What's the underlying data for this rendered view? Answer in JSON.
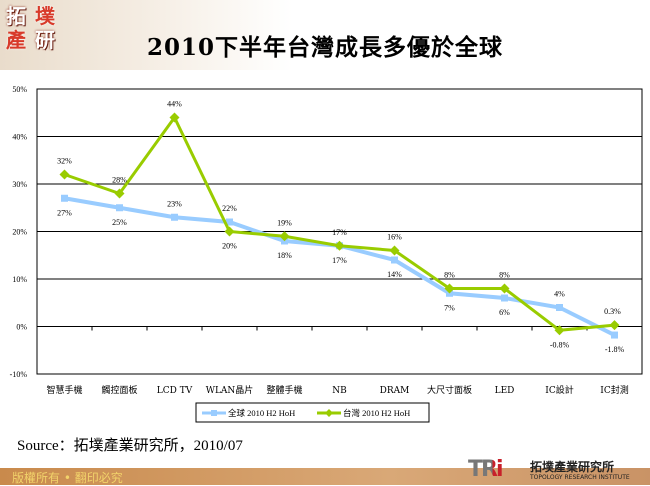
{
  "header": {
    "logo": "拓墣產研",
    "title": "2010下半年台灣成長多優於全球"
  },
  "chart_data": {
    "type": "line",
    "title": "2010下半年台灣成長多優於全球",
    "categories": [
      "智慧手機",
      "觸控面板",
      "LCD TV",
      "WLAN晶片",
      "整體手機",
      "NB",
      "DRAM",
      "大尺寸面板",
      "LED",
      "IC設計",
      "IC封測"
    ],
    "ylim": [
      -10,
      50
    ],
    "yticks": [
      "-10%",
      "0%",
      "10%",
      "20%",
      "30%",
      "40%",
      "50%"
    ],
    "grid": true,
    "legend": "bottom",
    "series": [
      {
        "name": "全球 2010 H2 HoH",
        "color": "#99ccff",
        "values": [
          27,
          25,
          23,
          22,
          18,
          17,
          14,
          7,
          6,
          4,
          -1.8
        ],
        "labels": [
          "27%",
          "25%",
          "23%",
          "22%",
          "18%",
          "17%",
          "14%",
          "7%",
          "6%",
          "4%",
          "-1.8%"
        ]
      },
      {
        "name": "台灣 2010 H2 HoH",
        "color": "#99cc00",
        "values": [
          32,
          28,
          44,
          20,
          19,
          17,
          16,
          8,
          8,
          -0.8,
          0.3
        ],
        "labels": [
          "32%",
          "28%",
          "44%",
          "20%",
          "19%",
          "17%",
          "16%",
          "8%",
          "8%",
          "-0.8%",
          "0.3%"
        ]
      }
    ]
  },
  "source": "Source：拓墣產業研究所，2010/07",
  "footer": {
    "copyright": "版權所有 • 翻印必究",
    "brand": "TRi",
    "brand_name": "拓墣產業研究所",
    "brand_en": "TOPOLOGY RESEARCH INSTITUTE"
  }
}
